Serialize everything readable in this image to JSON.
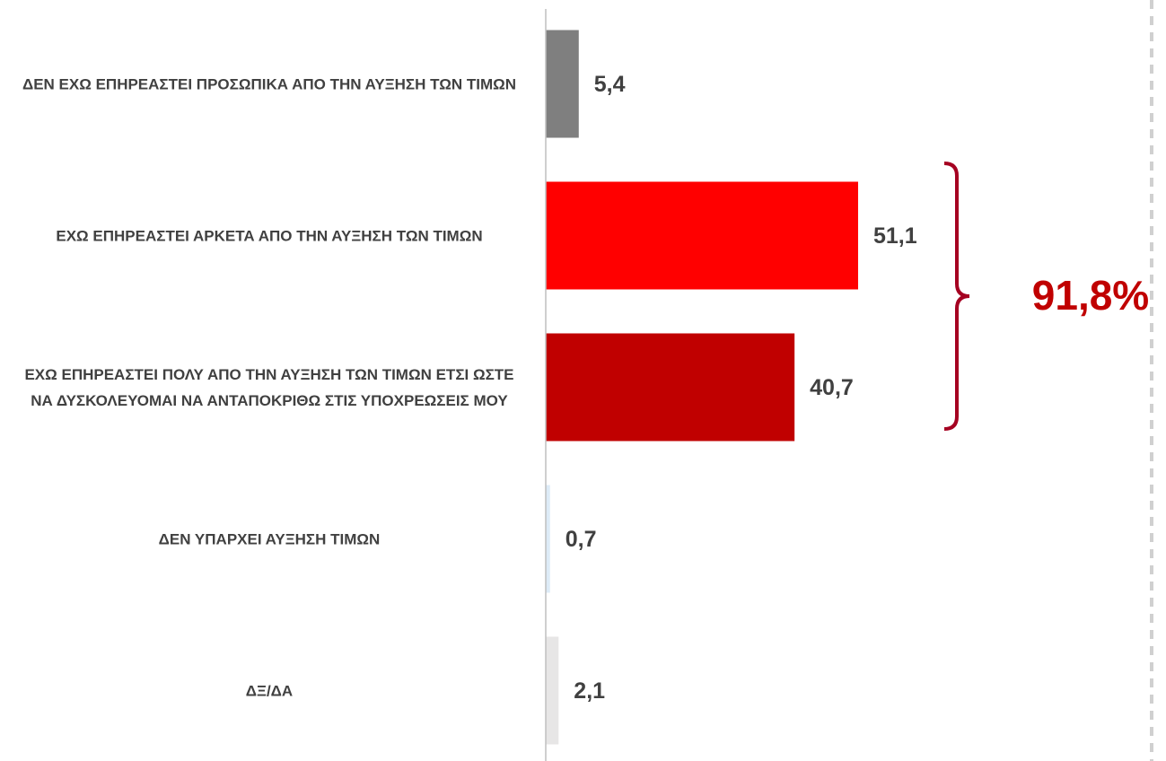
{
  "chart_data": {
    "type": "barh",
    "categories": [
      "ΔΕΝ ΕΧΩ ΕΠΗΡΕΑΣΤΕΙ ΠΡΟΣΩΠΙΚΑ ΑΠΟ ΤΗΝ ΑΥΞΗΣΗ ΤΩΝ ΤΙΜΩΝ",
      "ΕΧΩ ΕΠΗΡΕΑΣΤΕΙ ΑΡΚΕΤΑ ΑΠΟ ΤΗΝ ΑΥΞΗΣΗ ΤΩΝ ΤΙΜΩΝ",
      "ΕΧΩ ΕΠΗΡΕΑΣΤΕΙ ΠΟΛΥ ΑΠΟ ΤΗΝ ΑΥΞΗΣΗ ΤΩΝ ΤΙΜΩΝ ΕΤΣΙ ΩΣΤΕ ΝΑ ΔΥΣΚΟΛΕΥΟΜΑΙ ΝΑ ΑΝΤΑΠΟΚΡΙΘΩ ΣΤΙΣ ΥΠΟΧΡΕΩΣΕΙΣ ΜΟΥ",
      "ΔΕΝ ΥΠΑΡΧΕΙ ΑΥΞΗΣΗ ΤΙΜΩΝ",
      "ΔΞ/ΔΑ"
    ],
    "values": [
      5.4,
      51.1,
      40.7,
      0.7,
      2.1
    ],
    "value_labels": [
      "5,4",
      "51,1",
      "40,7",
      "0,7",
      "2,1"
    ],
    "colors": [
      "#7f7f7f",
      "#ff0000",
      "#c00000",
      "#ddebf7",
      "#e7e6e6"
    ],
    "xlim": [
      0,
      100
    ],
    "annotation": {
      "text": "91,8%",
      "color": "#c00000",
      "bracket_color": "#a50021"
    }
  }
}
